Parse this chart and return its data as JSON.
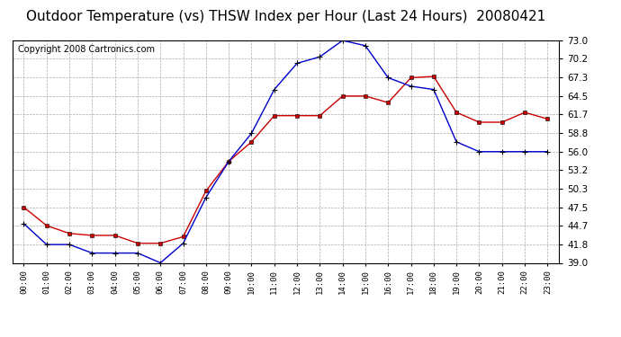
{
  "title": "Outdoor Temperature (vs) THSW Index per Hour (Last 24 Hours)  20080421",
  "copyright": "Copyright 2008 Cartronics.com",
  "x_labels": [
    "00:00",
    "01:00",
    "02:00",
    "03:00",
    "04:00",
    "05:00",
    "06:00",
    "07:00",
    "08:00",
    "09:00",
    "10:00",
    "11:00",
    "12:00",
    "13:00",
    "14:00",
    "15:00",
    "16:00",
    "17:00",
    "18:00",
    "19:00",
    "20:00",
    "21:00",
    "22:00",
    "23:00"
  ],
  "y_ticks": [
    39.0,
    41.8,
    44.7,
    47.5,
    50.3,
    53.2,
    56.0,
    58.8,
    61.7,
    64.5,
    67.3,
    70.2,
    73.0
  ],
  "y_min": 39.0,
  "y_max": 73.0,
  "temp_color": "#cc0000",
  "thsw_color": "#0000cc",
  "background_color": "#ffffff",
  "plot_bg_color": "#ffffff",
  "grid_color": "#aaaaaa",
  "title_fontsize": 11,
  "copyright_fontsize": 7,
  "temp_data": [
    47.5,
    44.7,
    43.5,
    43.2,
    43.2,
    42.0,
    42.0,
    43.0,
    50.0,
    54.5,
    57.5,
    61.5,
    61.5,
    61.5,
    64.5,
    64.5,
    63.5,
    67.3,
    67.5,
    62.0,
    60.5,
    60.5,
    62.0,
    61.0
  ],
  "thsw_data": [
    45.0,
    41.8,
    41.8,
    40.5,
    40.5,
    40.5,
    39.0,
    42.0,
    49.0,
    54.5,
    58.8,
    65.5,
    69.5,
    70.5,
    73.0,
    72.2,
    67.3,
    66.0,
    65.5,
    57.5,
    56.0,
    56.0,
    56.0,
    56.0
  ]
}
